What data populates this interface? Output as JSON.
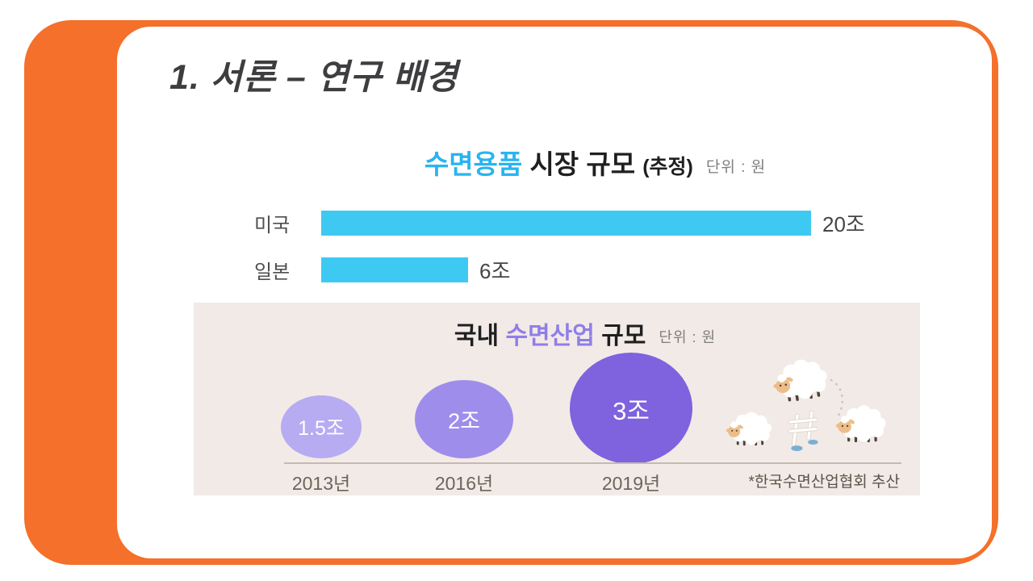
{
  "slide": {
    "title": "1. 서론 – 연구 배경"
  },
  "top_chart": {
    "title_highlight": "수면용품",
    "title_rest": " 시장 규모 ",
    "title_paren": "(추정)",
    "unit_label": "단위 : 원",
    "max_value": 20,
    "bar_color": "#3EC9F3",
    "bars": [
      {
        "label": "미국",
        "value": 20,
        "value_label": "20조"
      },
      {
        "label": "일본",
        "value": 6,
        "value_label": "6조"
      }
    ]
  },
  "bottom_chart": {
    "title_prefix": "국내 ",
    "title_highlight": "수면산업",
    "title_suffix": " 규모",
    "unit_label": "단위 : 원",
    "footnote": "*한국수면산업협회 추산",
    "bubbles": [
      {
        "value": 1.5,
        "value_label": "1.5조",
        "year": "2013년",
        "color": "#B7ABF2"
      },
      {
        "value": 2,
        "value_label": "2조",
        "year": "2016년",
        "color": "#9F8DEB"
      },
      {
        "value": 3,
        "value_label": "3조",
        "year": "2019년",
        "color": "#7E62DE"
      }
    ]
  },
  "colors": {
    "frame_orange": "#F4702B",
    "bar_cyan": "#3EC9F3",
    "title_blue": "#29B4F0",
    "title_purple": "#8F7EE8",
    "panel_pink": "#F2EAE7",
    "title_text": "#3E3E40"
  },
  "chart_data": [
    {
      "type": "bar",
      "orientation": "horizontal",
      "title": "수면용품 시장 규모 (추정)",
      "unit": "단위 : 원",
      "categories": [
        "미국",
        "일본"
      ],
      "values": [
        20,
        6
      ],
      "value_labels": [
        "20조",
        "6조"
      ],
      "xlim": [
        0,
        20
      ],
      "grid": false,
      "bar_color": "#3EC9F3"
    },
    {
      "type": "bubble",
      "title": "국내 수면산업 규모",
      "unit": "단위 : 원",
      "categories": [
        "2013년",
        "2016년",
        "2019년"
      ],
      "values": [
        1.5,
        2,
        3
      ],
      "value_labels": [
        "1.5조",
        "2조",
        "3조"
      ],
      "footnote": "*한국수면산업협회 추산",
      "bubble_colors": [
        "#B7ABF2",
        "#9F8DEB",
        "#7E62DE"
      ]
    }
  ]
}
